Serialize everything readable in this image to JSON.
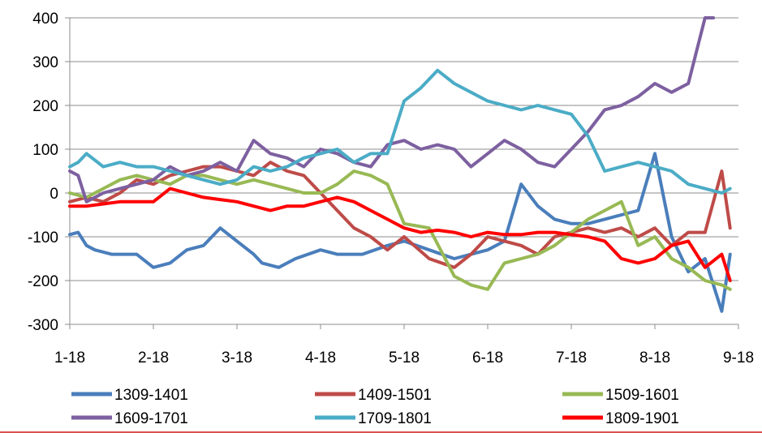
{
  "chart_data": {
    "type": "line",
    "title": "",
    "xlabel": "",
    "ylabel": "",
    "ylim": [
      -300,
      400
    ],
    "yticks": [
      "400",
      "300",
      "200",
      "100",
      "0",
      "-100",
      "-200",
      "-300"
    ],
    "yticks_values": [
      400,
      300,
      200,
      100,
      0,
      -100,
      -200,
      -300
    ],
    "x_ticks": [
      "1-18",
      "2-18",
      "3-18",
      "4-18",
      "5-18",
      "6-18",
      "7-18",
      "8-18",
      "9-18"
    ],
    "x_ticks_index": [
      0,
      1,
      2,
      3,
      4,
      5,
      6,
      7,
      8
    ],
    "xlim": [
      0,
      8
    ],
    "grid": "horizontal",
    "legend_position": "bottom",
    "series": [
      {
        "name": "1309-1401",
        "color": "#4a7ebb",
        "x": [
          0,
          0.1,
          0.2,
          0.3,
          0.5,
          0.8,
          1.0,
          1.2,
          1.4,
          1.6,
          1.8,
          2.0,
          2.2,
          2.3,
          2.5,
          2.7,
          3.0,
          3.2,
          3.5,
          3.8,
          4.0,
          4.3,
          4.6,
          4.8,
          5.0,
          5.2,
          5.4,
          5.6,
          5.8,
          6.0,
          6.2,
          6.4,
          6.6,
          6.8,
          7.0,
          7.2,
          7.4,
          7.6,
          7.8,
          7.9
        ],
        "y": [
          -95,
          -90,
          -120,
          -130,
          -140,
          -140,
          -170,
          -160,
          -130,
          -120,
          -80,
          -110,
          -140,
          -160,
          -170,
          -150,
          -130,
          -140,
          -140,
          -120,
          -110,
          -130,
          -150,
          -140,
          -130,
          -110,
          20,
          -30,
          -60,
          -70,
          -70,
          -60,
          -50,
          -40,
          90,
          -100,
          -180,
          -150,
          -270,
          -140
        ]
      },
      {
        "name": "1409-1501",
        "color": "#be4b48",
        "x": [
          0,
          0.2,
          0.4,
          0.6,
          0.8,
          1.0,
          1.2,
          1.4,
          1.6,
          1.8,
          2.0,
          2.2,
          2.4,
          2.6,
          2.8,
          3.0,
          3.2,
          3.4,
          3.6,
          3.8,
          4.0,
          4.3,
          4.6,
          4.8,
          5.0,
          5.2,
          5.4,
          5.6,
          5.8,
          6.0,
          6.2,
          6.4,
          6.6,
          6.8,
          7.0,
          7.2,
          7.4,
          7.6,
          7.8,
          7.9
        ],
        "y": [
          -20,
          -10,
          -20,
          0,
          30,
          20,
          40,
          50,
          60,
          60,
          50,
          40,
          70,
          50,
          40,
          0,
          -40,
          -80,
          -100,
          -130,
          -100,
          -150,
          -170,
          -140,
          -100,
          -110,
          -120,
          -140,
          -100,
          -90,
          -80,
          -90,
          -80,
          -100,
          -80,
          -120,
          -90,
          -90,
          50,
          -80
        ]
      },
      {
        "name": "1509-1601",
        "color": "#98b954",
        "x": [
          0,
          0.2,
          0.4,
          0.6,
          0.8,
          1.0,
          1.2,
          1.4,
          1.6,
          1.8,
          2.0,
          2.2,
          2.4,
          2.6,
          2.8,
          3.0,
          3.2,
          3.4,
          3.6,
          3.8,
          4.0,
          4.3,
          4.6,
          4.8,
          5.0,
          5.2,
          5.4,
          5.6,
          5.8,
          6.0,
          6.2,
          6.4,
          6.6,
          6.8,
          7.0,
          7.2,
          7.4,
          7.6,
          7.8,
          7.9
        ],
        "y": [
          0,
          -10,
          10,
          30,
          40,
          30,
          20,
          40,
          40,
          30,
          20,
          30,
          20,
          10,
          0,
          0,
          20,
          50,
          40,
          20,
          -70,
          -80,
          -190,
          -210,
          -220,
          -160,
          -150,
          -140,
          -120,
          -90,
          -60,
          -40,
          -20,
          -120,
          -100,
          -150,
          -170,
          -200,
          -210,
          -220
        ]
      },
      {
        "name": "1609-1701",
        "color": "#7d60a0",
        "x": [
          0,
          0.1,
          0.2,
          0.4,
          0.6,
          0.8,
          1.0,
          1.2,
          1.4,
          1.6,
          1.8,
          2.0,
          2.2,
          2.4,
          2.6,
          2.8,
          3.0,
          3.2,
          3.4,
          3.6,
          3.8,
          4.0,
          4.2,
          4.4,
          4.6,
          4.8,
          5.0,
          5.2,
          5.4,
          5.6,
          5.8,
          6.0,
          6.2,
          6.4,
          6.6,
          6.8,
          7.0,
          7.2,
          7.4,
          7.6,
          7.7
        ],
        "y": [
          50,
          40,
          -20,
          0,
          10,
          20,
          30,
          60,
          40,
          50,
          70,
          50,
          120,
          90,
          80,
          60,
          100,
          90,
          70,
          60,
          110,
          120,
          100,
          110,
          100,
          60,
          90,
          120,
          100,
          70,
          60,
          100,
          140,
          190,
          200,
          220,
          250,
          230,
          250,
          400,
          400
        ]
      },
      {
        "name": "1709-1801",
        "color": "#4bacc6",
        "x": [
          0,
          0.1,
          0.2,
          0.4,
          0.6,
          0.8,
          1.0,
          1.2,
          1.4,
          1.6,
          1.8,
          2.0,
          2.2,
          2.4,
          2.6,
          2.8,
          3.0,
          3.2,
          3.4,
          3.6,
          3.8,
          4.0,
          4.2,
          4.4,
          4.6,
          4.8,
          5.0,
          5.2,
          5.4,
          5.6,
          5.8,
          6.0,
          6.2,
          6.4,
          6.6,
          6.8,
          7.0,
          7.2,
          7.4,
          7.6,
          7.8,
          7.9
        ],
        "y": [
          60,
          70,
          90,
          60,
          70,
          60,
          60,
          50,
          40,
          30,
          20,
          30,
          60,
          50,
          60,
          80,
          90,
          100,
          70,
          90,
          90,
          210,
          240,
          280,
          250,
          230,
          210,
          200,
          190,
          200,
          190,
          180,
          130,
          50,
          60,
          70,
          60,
          50,
          20,
          10,
          0,
          10
        ]
      },
      {
        "name": "1809-1901",
        "color": "#ff0000",
        "x": [
          0,
          0.2,
          0.4,
          0.6,
          0.8,
          1.0,
          1.2,
          1.4,
          1.6,
          1.8,
          2.0,
          2.2,
          2.4,
          2.6,
          2.8,
          3.0,
          3.2,
          3.4,
          3.6,
          3.8,
          4.0,
          4.2,
          4.4,
          4.6,
          4.8,
          5.0,
          5.2,
          5.4,
          5.6,
          5.8,
          6.0,
          6.2,
          6.4,
          6.6,
          6.8,
          7.0,
          7.2,
          7.4,
          7.6,
          7.8,
          7.9
        ],
        "y": [
          -30,
          -30,
          -25,
          -20,
          -20,
          -20,
          10,
          0,
          -10,
          -15,
          -20,
          -30,
          -40,
          -30,
          -30,
          -20,
          -10,
          -20,
          -40,
          -60,
          -80,
          -90,
          -85,
          -90,
          -100,
          -90,
          -95,
          -95,
          -90,
          -90,
          -95,
          -100,
          -110,
          -150,
          -160,
          -150,
          -120,
          -110,
          -170,
          -140,
          -200
        ]
      }
    ]
  }
}
